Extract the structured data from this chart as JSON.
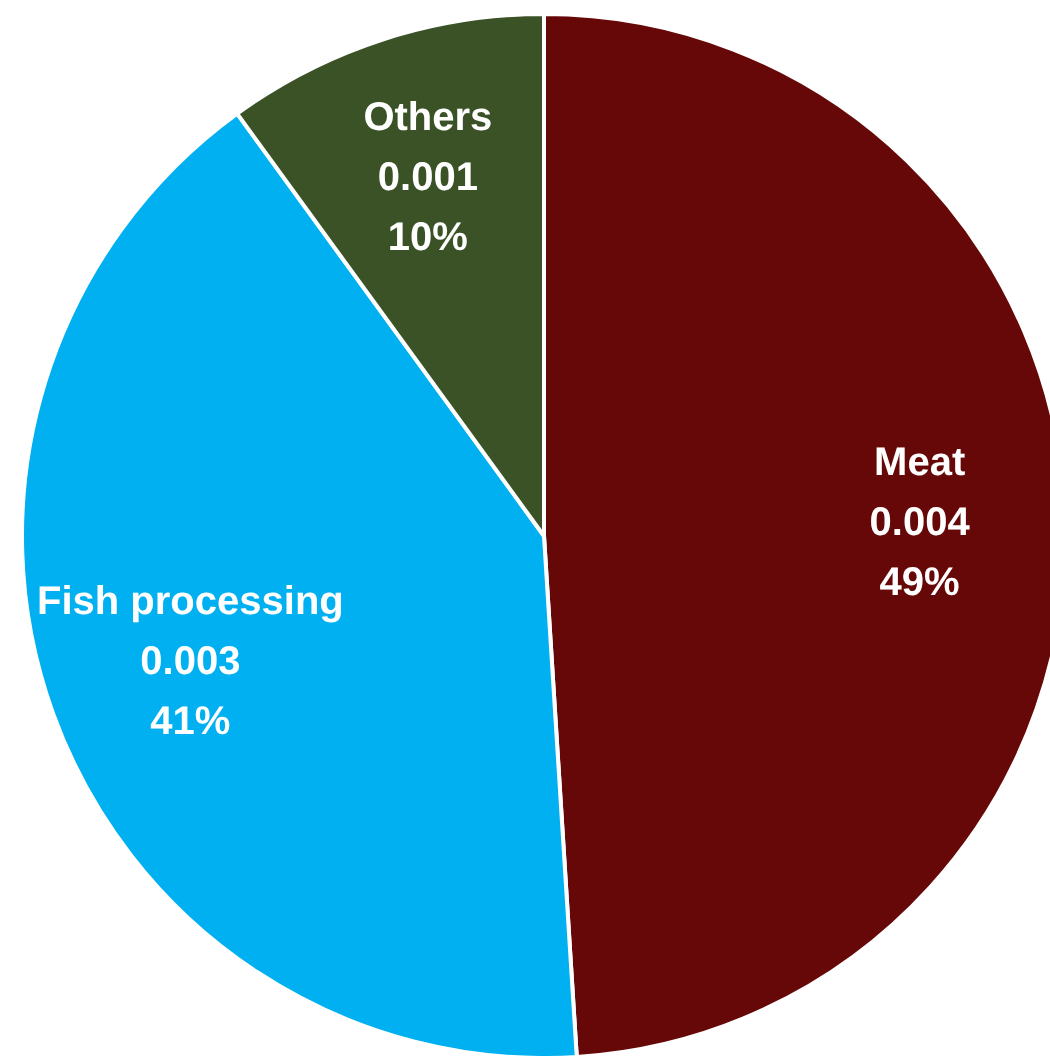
{
  "chart_data": {
    "type": "pie",
    "categories": [
      "Meat",
      "Fish processing",
      "Others"
    ],
    "values": [
      49,
      41,
      10
    ],
    "value_labels": [
      "49%",
      "41%",
      "10%"
    ],
    "annotations": [
      {
        "text": "0.004",
        "x": "Meat"
      },
      {
        "text": "0.003",
        "x": "Fish processing"
      },
      {
        "text": "0.001",
        "x": "Others"
      }
    ],
    "colors": [
      "#660808",
      "#00b0f0",
      "#3a5226"
    ]
  }
}
